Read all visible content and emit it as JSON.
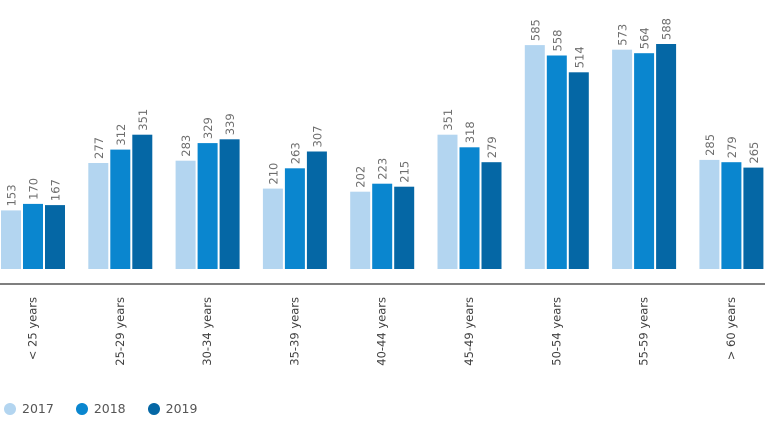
{
  "chart_data": {
    "type": "bar",
    "categories": [
      "< 25 years",
      "25-29 years",
      "30-34 years",
      "35-39 years",
      "40-44 years",
      "45-49 years",
      "50-54 years",
      "55-59 years",
      "> 60 years"
    ],
    "series": [
      {
        "name": "2017",
        "color": "#b3d5f0",
        "values": [
          153,
          277,
          283,
          210,
          202,
          351,
          585,
          573,
          285
        ]
      },
      {
        "name": "2018",
        "color": "#0a86cf",
        "values": [
          170,
          312,
          329,
          263,
          223,
          318,
          558,
          564,
          279
        ]
      },
      {
        "name": "2019",
        "color": "#0567a5",
        "values": [
          167,
          351,
          339,
          307,
          215,
          279,
          514,
          588,
          265
        ]
      }
    ],
    "ylim": [
      0,
      600
    ],
    "legend": "bottom-left",
    "grid": false,
    "axis_color": "#555555"
  }
}
